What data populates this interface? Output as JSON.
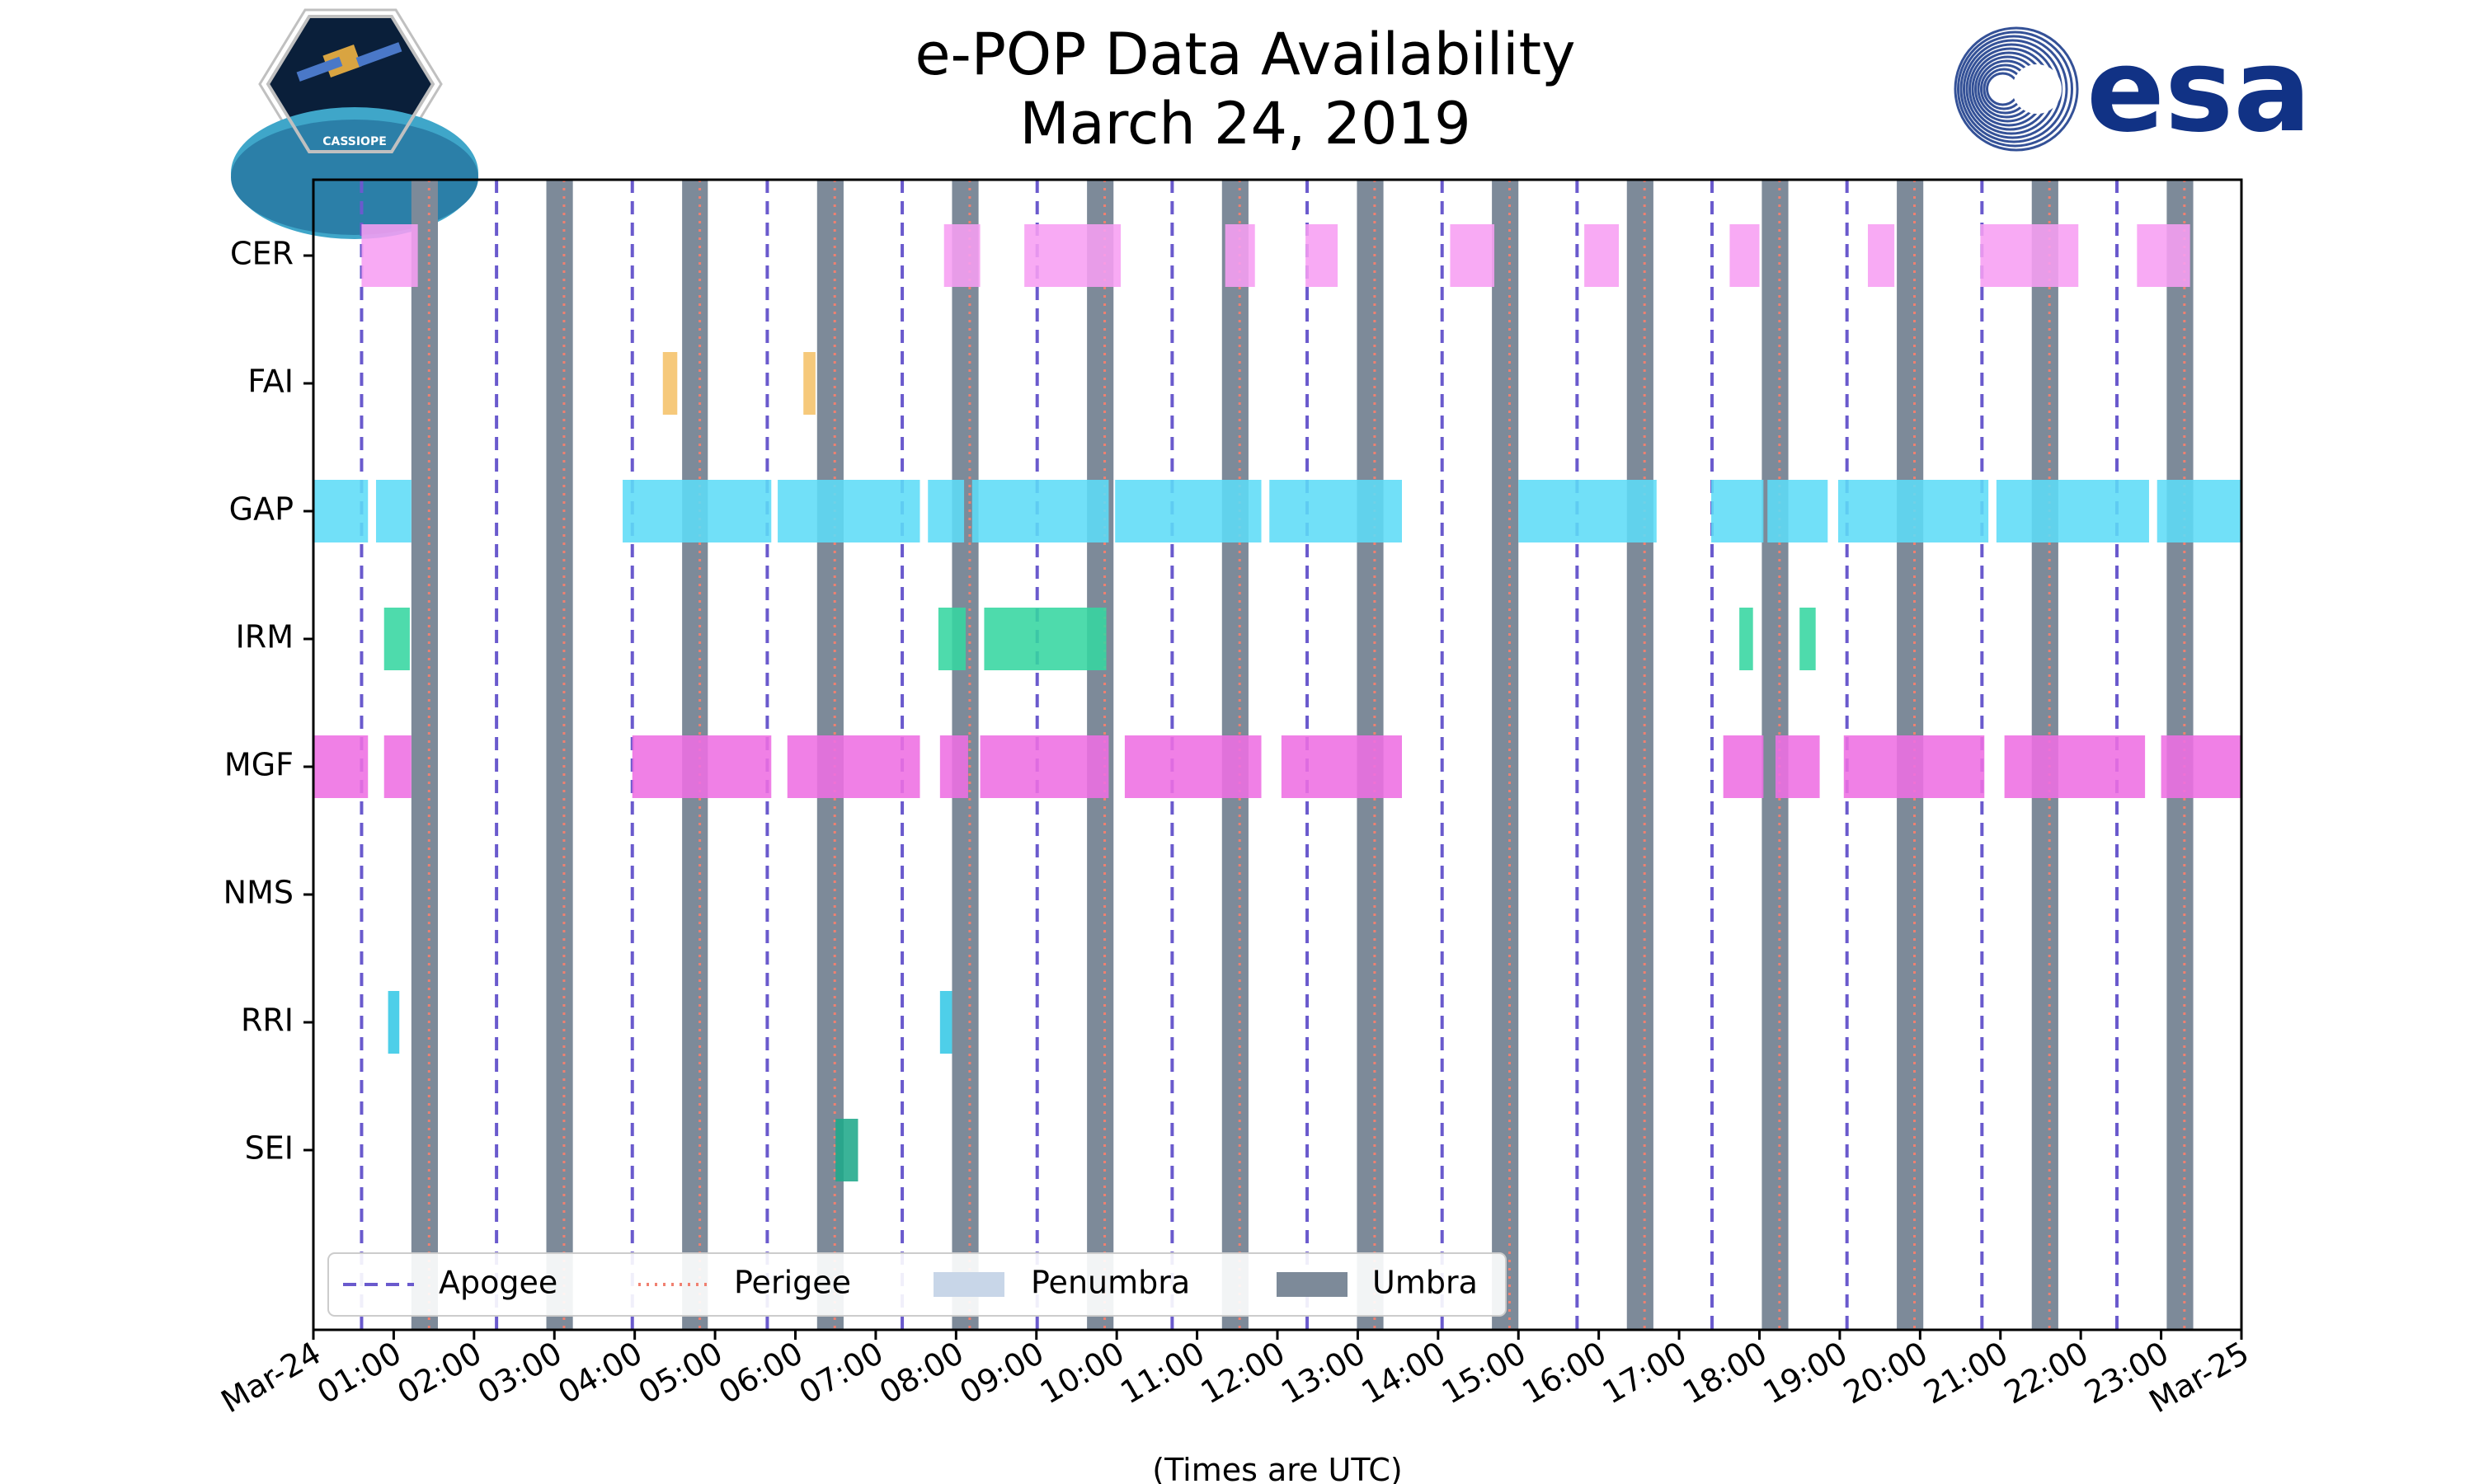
{
  "chart_data": {
    "type": "timeline",
    "title": [
      "e-POP Data Availability",
      "March 24, 2019"
    ],
    "xlabel": "(Times are UTC)",
    "xlim": [
      0,
      24
    ],
    "x_unit": "hours UTC",
    "xtick_labels": [
      "Mar-24",
      "01:00",
      "02:00",
      "03:00",
      "04:00",
      "05:00",
      "06:00",
      "07:00",
      "08:00",
      "09:00",
      "10:00",
      "11:00",
      "12:00",
      "13:00",
      "14:00",
      "15:00",
      "16:00",
      "17:00",
      "18:00",
      "19:00",
      "20:00",
      "21:00",
      "22:00",
      "23:00",
      "Mar-25"
    ],
    "instruments": [
      "CER",
      "FAI",
      "GAP",
      "IRM",
      "MGF",
      "NMS",
      "RRI",
      "SEI"
    ],
    "colors": {
      "CER": "#f79ef2",
      "FAI": "#f5c169",
      "GAP": "#5ddcf7",
      "IRM": "#36d6a1",
      "MGF": "#ee6ee3",
      "NMS": "#999999",
      "RRI": "#36c8e6",
      "SEI": "#1fa88a",
      "apogee": "#6a5acd",
      "perigee": "#f08070",
      "penumbra": "#c8d6e8",
      "umbra": "#7d8a99"
    },
    "apogee_hours": [
      0.6,
      2.28,
      3.97,
      5.65,
      7.33,
      9.01,
      10.69,
      12.37,
      14.05,
      15.73,
      17.41,
      19.09,
      20.77,
      22.45
    ],
    "perigee_hours": [
      1.44,
      3.12,
      4.81,
      6.49,
      8.17,
      9.85,
      11.53,
      13.21,
      14.89,
      16.57,
      18.25,
      19.93,
      21.61,
      23.29
    ],
    "umbra_intervals": [
      [
        1.22,
        1.55
      ],
      [
        2.9,
        3.23
      ],
      [
        4.59,
        4.91
      ],
      [
        6.27,
        6.6
      ],
      [
        7.95,
        8.28
      ],
      [
        9.63,
        9.96
      ],
      [
        11.31,
        11.64
      ],
      [
        12.99,
        13.32
      ],
      [
        14.67,
        15.0
      ],
      [
        16.35,
        16.68
      ],
      [
        18.03,
        18.36
      ],
      [
        19.71,
        20.04
      ],
      [
        21.39,
        21.72
      ],
      [
        23.07,
        23.4
      ]
    ],
    "series": [
      {
        "name": "CER",
        "intervals": [
          [
            0.6,
            1.3
          ],
          [
            7.85,
            8.3
          ],
          [
            8.85,
            10.05
          ],
          [
            11.35,
            11.72
          ],
          [
            12.35,
            12.75
          ],
          [
            14.15,
            14.7
          ],
          [
            15.82,
            16.25
          ],
          [
            17.63,
            18.0
          ],
          [
            19.35,
            19.68
          ],
          [
            20.75,
            21.97
          ],
          [
            22.7,
            23.36
          ]
        ]
      },
      {
        "name": "FAI",
        "intervals": [
          [
            4.35,
            4.53
          ],
          [
            6.1,
            6.25
          ]
        ]
      },
      {
        "name": "GAP",
        "intervals": [
          [
            0.0,
            0.68
          ],
          [
            0.78,
            1.22
          ],
          [
            3.85,
            5.7
          ],
          [
            5.78,
            7.55
          ],
          [
            7.65,
            8.1
          ],
          [
            8.2,
            9.9
          ],
          [
            9.98,
            11.8
          ],
          [
            11.9,
            13.55
          ],
          [
            15.0,
            16.72
          ],
          [
            17.4,
            18.05
          ],
          [
            18.1,
            18.85
          ],
          [
            18.98,
            20.85
          ],
          [
            20.95,
            22.85
          ],
          [
            22.95,
            24.0
          ]
        ]
      },
      {
        "name": "IRM",
        "intervals": [
          [
            0.88,
            1.2
          ],
          [
            7.78,
            8.12
          ],
          [
            8.35,
            9.87
          ],
          [
            17.75,
            17.92
          ],
          [
            18.5,
            18.7
          ]
        ]
      },
      {
        "name": "MGF",
        "intervals": [
          [
            0.0,
            0.68
          ],
          [
            0.88,
            1.22
          ],
          [
            3.97,
            5.7
          ],
          [
            5.9,
            7.55
          ],
          [
            7.8,
            8.15
          ],
          [
            8.3,
            9.9
          ],
          [
            10.1,
            11.8
          ],
          [
            12.05,
            13.55
          ],
          [
            17.55,
            18.05
          ],
          [
            18.2,
            18.75
          ],
          [
            19.05,
            20.8
          ],
          [
            21.05,
            22.8
          ],
          [
            23.0,
            24.0
          ]
        ]
      },
      {
        "name": "NMS",
        "intervals": []
      },
      {
        "name": "RRI",
        "intervals": [
          [
            0.93,
            1.07
          ],
          [
            7.8,
            7.95
          ]
        ]
      },
      {
        "name": "SEI",
        "intervals": [
          [
            6.5,
            6.78
          ]
        ]
      }
    ],
    "legend": {
      "placement": "bottom-left",
      "entries": [
        {
          "key": "apogee",
          "label": "Apogee"
        },
        {
          "key": "perigee",
          "label": "Perigee"
        },
        {
          "key": "penumbra",
          "label": "Penumbra"
        },
        {
          "key": "umbra",
          "label": "Umbra"
        }
      ]
    }
  },
  "logos": {
    "left_badge_text": "CASSIOPE",
    "right_word": "esa"
  }
}
